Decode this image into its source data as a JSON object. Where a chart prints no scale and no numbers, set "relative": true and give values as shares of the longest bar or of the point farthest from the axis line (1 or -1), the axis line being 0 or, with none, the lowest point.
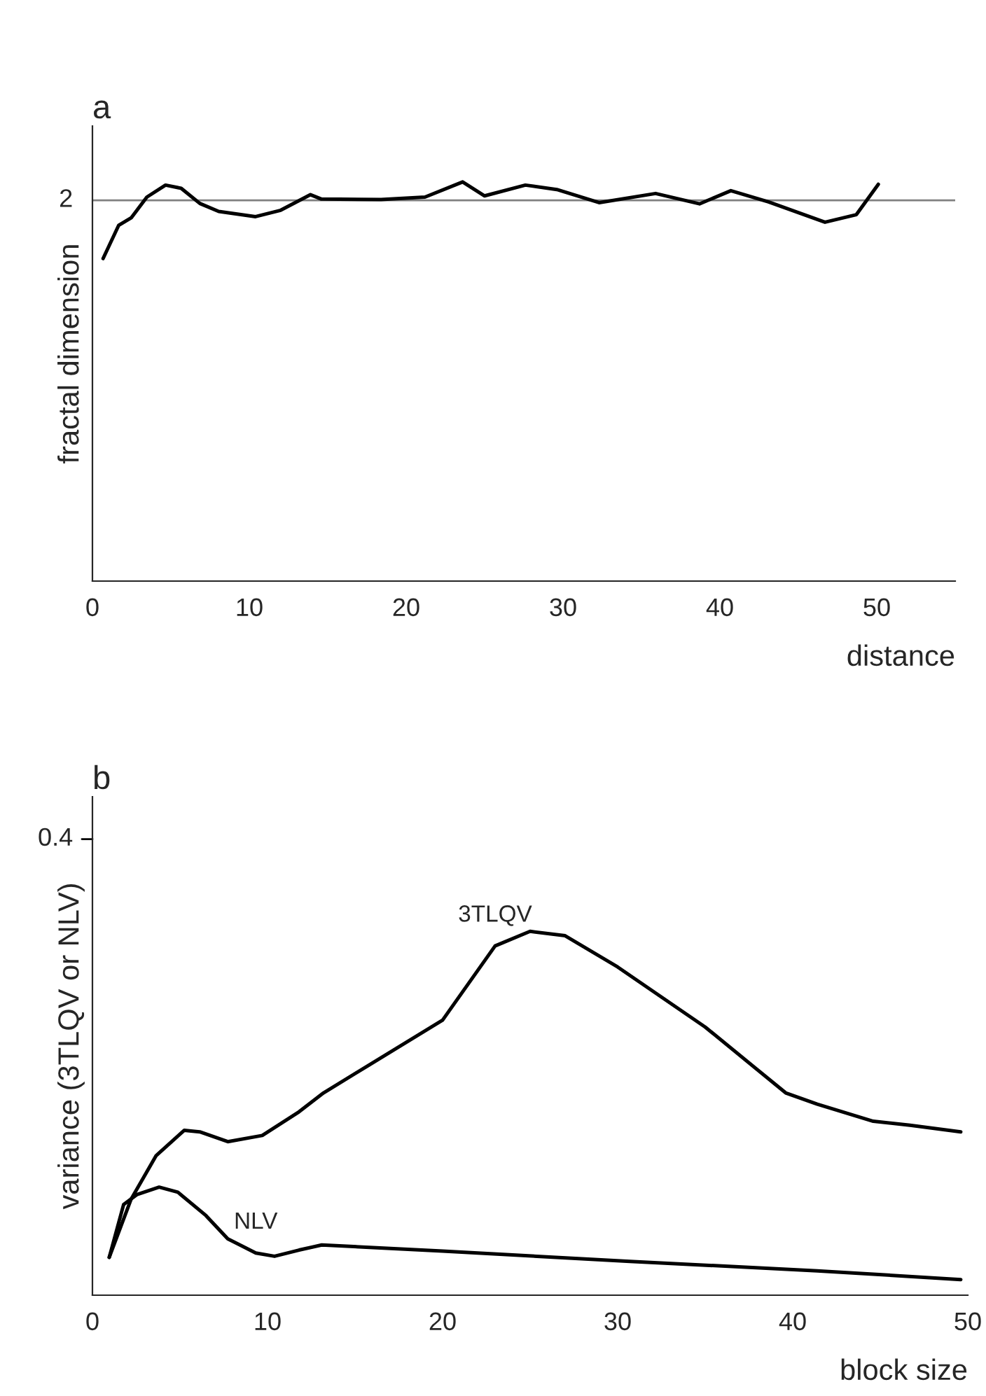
{
  "chart_data": [
    {
      "type": "line",
      "title": "a",
      "xlabel": "distance",
      "ylabel": "fractal dimension",
      "relative": true,
      "xlim": [
        0,
        55
      ],
      "xticks": [
        0,
        10,
        20,
        30,
        40,
        50
      ],
      "grid": false,
      "legend": false,
      "marker": "none",
      "line_style": "solid",
      "annotations": [
        "2"
      ],
      "ref_lines": [
        {
          "axis": "y",
          "value": 0.954,
          "color": "#808080",
          "line_style": "solid"
        }
      ],
      "series": [
        {
          "color": "#000000",
          "x": [
            0.68,
            1.67,
            2.47,
            3.47,
            4.66,
            5.66,
            6.85,
            8.05,
            10.4,
            12.0,
            13.9,
            14.6,
            18.4,
            21.2,
            23.6,
            25.0,
            27.6,
            29.6,
            32.3,
            35.9,
            38.7,
            40.7,
            43.1,
            46.7,
            48.7,
            50.1
          ],
          "values": [
            0.808,
            0.891,
            0.91,
            0.962,
            0.992,
            0.984,
            0.946,
            0.926,
            0.913,
            0.929,
            0.968,
            0.957,
            0.956,
            0.962,
            1.0,
            0.965,
            0.992,
            0.981,
            0.948,
            0.971,
            0.945,
            0.978,
            0.95,
            0.899,
            0.918,
            0.994
          ]
        }
      ]
    },
    {
      "type": "line",
      "title": "b",
      "xlabel": "block size",
      "ylabel": "variance (3TLQV or NLV)",
      "relative": true,
      "xlim": [
        0,
        50
      ],
      "xticks": [
        0,
        10,
        20,
        30,
        40,
        50
      ],
      "grid": false,
      "legend": false,
      "marker": "none",
      "line_style": "solid",
      "annotations": [
        "0.4"
      ],
      "series": [
        {
          "name": "3TLQV",
          "color": "#000000",
          "x": [
            0.96,
            2.2,
            3.63,
            5.24,
            6.13,
            7.73,
            9.7,
            11.8,
            13.2,
            20.0,
            23.0,
            25.0,
            27.0,
            30.0,
            35.0,
            39.6,
            41.4,
            44.6,
            46.7,
            49.6
          ],
          "values": [
            0.104,
            0.263,
            0.383,
            0.453,
            0.449,
            0.422,
            0.439,
            0.504,
            0.556,
            0.756,
            0.96,
            1.0,
            0.988,
            0.902,
            0.737,
            0.556,
            0.525,
            0.478,
            0.467,
            0.449
          ]
        },
        {
          "name": "NLV",
          "color": "#000000",
          "x": [
            0.96,
            1.78,
            2.56,
            3.81,
            4.88,
            6.48,
            7.73,
            9.33,
            10.4,
            11.8,
            13.1,
            20.0,
            30.7,
            41.4,
            49.6
          ],
          "values": [
            0.104,
            0.249,
            0.277,
            0.297,
            0.283,
            0.219,
            0.155,
            0.116,
            0.107,
            0.124,
            0.138,
            0.121,
            0.093,
            0.067,
            0.043
          ]
        }
      ]
    }
  ]
}
